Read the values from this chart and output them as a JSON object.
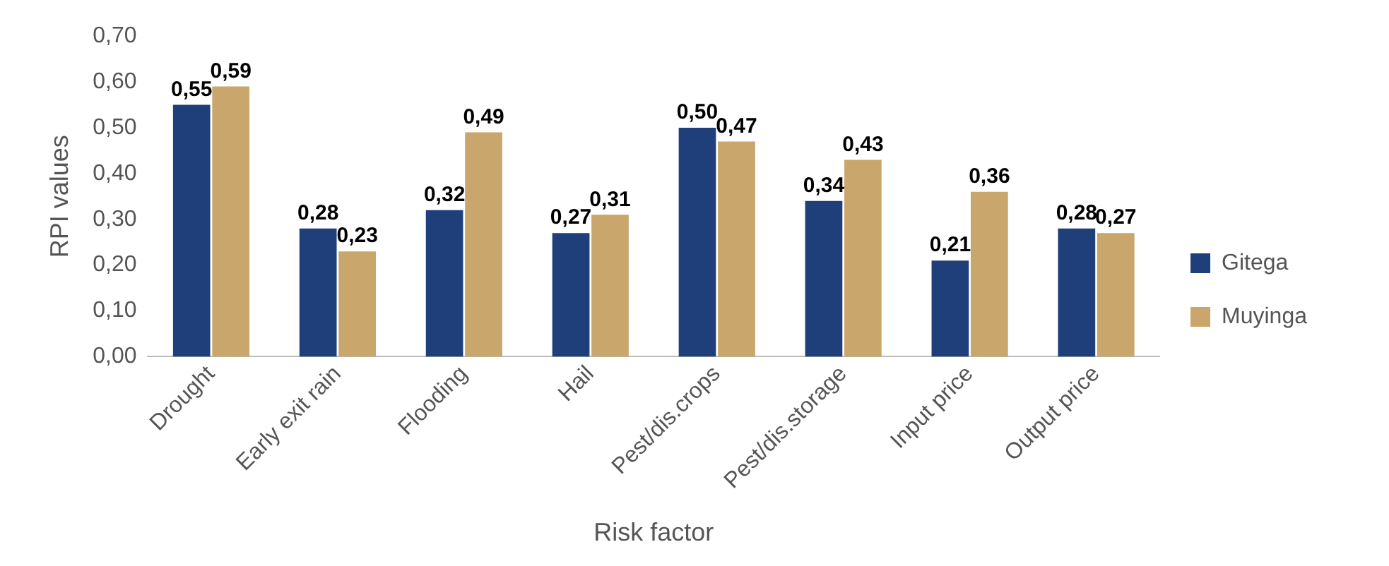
{
  "chart_data": {
    "type": "bar",
    "xlabel": "Risk factor",
    "ylabel": "RPI values",
    "categories": [
      "Drought",
      "Early exit rain",
      "Flooding",
      "Hail",
      "Pest/dis.crops",
      "Pest/dis.storage",
      "Input price",
      "Output price"
    ],
    "series": [
      {
        "name": "Gitega",
        "color": "#1f3f7a",
        "values": [
          0.55,
          0.28,
          0.32,
          0.27,
          0.5,
          0.34,
          0.21,
          0.28
        ],
        "value_labels": [
          "0,55",
          "0,28",
          "0,32",
          "0,27",
          "0,50",
          "0,34",
          "0,21",
          "0,28"
        ]
      },
      {
        "name": "Muyinga",
        "color": "#c9a66b",
        "values": [
          0.59,
          0.23,
          0.49,
          0.31,
          0.47,
          0.43,
          0.36,
          0.27
        ],
        "value_labels": [
          "0,59",
          "0,23",
          "0,49",
          "0,31",
          "0,47",
          "0,43",
          "0,36",
          "0,27"
        ]
      }
    ],
    "ylim": [
      0,
      0.7
    ],
    "yticks": [
      {
        "value": 0,
        "label": "0,00"
      },
      {
        "value": 0.1,
        "label": "0,10"
      },
      {
        "value": 0.2,
        "label": "0,20"
      },
      {
        "value": 0.3,
        "label": "0,30"
      },
      {
        "value": 0.4,
        "label": "0,40"
      },
      {
        "value": 0.5,
        "label": "0,50"
      },
      {
        "value": 0.6,
        "label": "0,60"
      },
      {
        "value": 0.7,
        "label": "0,70"
      }
    ],
    "grid": false,
    "legend": "right"
  }
}
